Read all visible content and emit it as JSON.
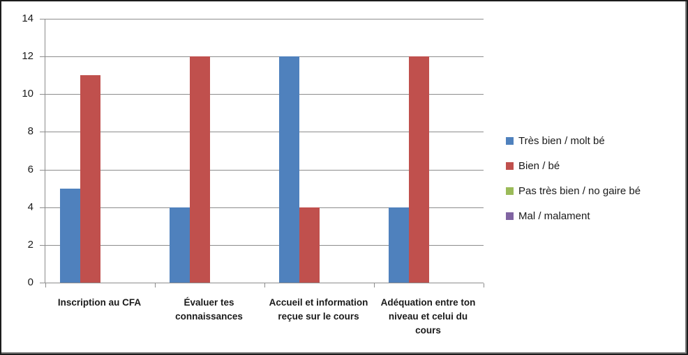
{
  "frame": {
    "background": "#ffffff",
    "border_color": "#1c1c1c",
    "inner_shadow_color": "#7f7f7f"
  },
  "chart_data": {
    "type": "bar",
    "title": "",
    "xlabel": "",
    "ylabel": "",
    "categories": [
      "Inscription au CFA",
      "Évaluer tes connaissances",
      "Accueil et information reçue sur le cours",
      "Adéquation entre ton niveau et celui du cours"
    ],
    "series": [
      {
        "name": "Très bien / molt bé",
        "color": "#4F81BD",
        "values": [
          5,
          4,
          12,
          4
        ]
      },
      {
        "name": "Bien / bé",
        "color": "#C0504D",
        "values": [
          11,
          12,
          4,
          12
        ]
      },
      {
        "name": "Pas très bien / no gaire bé",
        "color": "#9BBB59",
        "values": [
          0,
          0,
          0,
          0
        ]
      },
      {
        "name": "Mal / malament",
        "color": "#8064A2",
        "values": [
          0,
          0,
          0,
          0
        ]
      }
    ],
    "ylim": [
      0,
      14
    ],
    "yticks": [
      0,
      2,
      4,
      6,
      8,
      10,
      12,
      14
    ],
    "grid": true,
    "legend_position": "right",
    "gridline_color": "#8c8c8c",
    "axis_color": "#8c8c8c",
    "text_color": "#1a1a1a"
  }
}
